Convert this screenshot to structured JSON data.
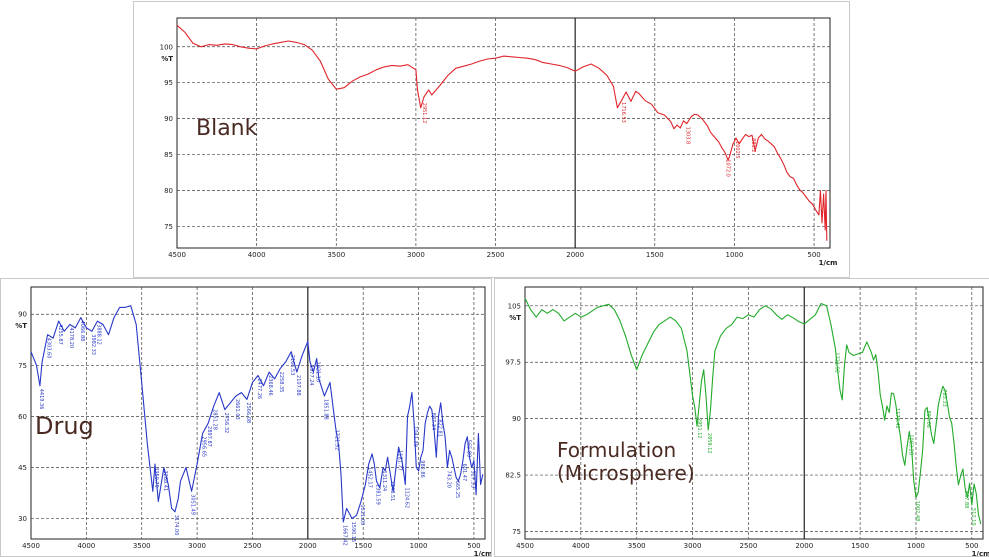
{
  "chart_data": [
    {
      "type": "line",
      "title": "",
      "panel_label": "Blank",
      "ylabel": "%T",
      "xlabel": "1/cm",
      "x_reversed": true,
      "xlim": [
        4500,
        400
      ],
      "ylim": [
        72,
        104
      ],
      "xticks": [
        4500,
        4000,
        3500,
        3000,
        2500,
        2000,
        1500,
        1000,
        500
      ],
      "yticks": [
        75,
        80,
        85,
        90,
        95,
        100
      ],
      "series": [
        {
          "color": "#e0242a",
          "x": [
            4500,
            4450,
            4400,
            4350,
            4300,
            4250,
            4200,
            4150,
            4100,
            4050,
            4000,
            3950,
            3900,
            3850,
            3800,
            3750,
            3700,
            3650,
            3600,
            3550,
            3500,
            3450,
            3400,
            3350,
            3300,
            3250,
            3200,
            3150,
            3100,
            3050,
            3000,
            2990,
            2970,
            2950,
            2920,
            2900,
            2850,
            2800,
            2750,
            2700,
            2650,
            2600,
            2550,
            2500,
            2450,
            2400,
            2350,
            2300,
            2250,
            2200,
            2150,
            2100,
            2050,
            2000,
            1950,
            1900,
            1850,
            1800,
            1760,
            1735,
            1710,
            1680,
            1650,
            1620,
            1600,
            1560,
            1520,
            1480,
            1440,
            1400,
            1380,
            1360,
            1340,
            1320,
            1300,
            1270,
            1250,
            1230,
            1200,
            1170,
            1150,
            1120,
            1100,
            1080,
            1060,
            1040,
            1030,
            1010,
            990,
            970,
            950,
            930,
            910,
            890,
            870,
            850,
            830,
            810,
            790,
            770,
            750,
            730,
            710,
            690,
            670,
            650,
            630,
            610,
            590,
            570,
            550,
            530,
            510,
            490,
            470,
            460,
            450,
            440,
            430,
            425,
            420
          ],
          "y": [
            103,
            102,
            100.5,
            100,
            100.3,
            100.2,
            100.4,
            100.3,
            100,
            99.8,
            99.7,
            100.1,
            100.4,
            100.6,
            100.8,
            100.6,
            100.3,
            99.5,
            98,
            95.5,
            94.1,
            94.3,
            95.2,
            95.8,
            96.2,
            96.8,
            97.2,
            97.4,
            97.3,
            97.5,
            96.8,
            94,
            91.5,
            93,
            94,
            93.3,
            94.6,
            96,
            97,
            97.3,
            97.6,
            98,
            98.3,
            98.4,
            98.7,
            98.6,
            98.5,
            98.4,
            98.2,
            97.8,
            97.6,
            97.4,
            97.1,
            96.6,
            97.2,
            97.6,
            97,
            96,
            94.5,
            91.5,
            92.5,
            93.7,
            92.4,
            93.8,
            93.5,
            92.5,
            92,
            90.8,
            90.5,
            89.6,
            88.6,
            89.1,
            88.7,
            89.7,
            89.3,
            90.3,
            90.6,
            90.5,
            89.9,
            89,
            88.1,
            87.3,
            86.8,
            86,
            85.3,
            84.2,
            84.8,
            86.4,
            87.3,
            86.5,
            87.2,
            87.8,
            87.5,
            87.7,
            85.5,
            87.3,
            87.8,
            87.2,
            86.9,
            86.5,
            86.1,
            85.2,
            84.5,
            83.6,
            82.5,
            81.9,
            81.7,
            80.8,
            80.1,
            79.7,
            79.1,
            78.5,
            78.1,
            77.3,
            76.6,
            80,
            75.5,
            79.5,
            74.5,
            80,
            73
          ]
        }
      ],
      "peak_labels": [
        {
          "x": 2955,
          "text": "2951.12"
        },
        {
          "x": 1705,
          "text": "1716.53"
        },
        {
          "x": 1300,
          "text": "1303.8"
        },
        {
          "x": 1050,
          "text": "1072.0"
        },
        {
          "x": 990,
          "text": "1002.5"
        },
        {
          "x": 890,
          "text": "881.2"
        }
      ]
    },
    {
      "type": "line",
      "title": "",
      "panel_label": "Drug",
      "ylabel": "%T",
      "xlabel": "1/cm",
      "x_reversed": true,
      "xlim": [
        4500,
        400
      ],
      "ylim": [
        24,
        98
      ],
      "xticks": [
        4500,
        4000,
        3500,
        3000,
        2500,
        2000,
        1500,
        1000,
        500
      ],
      "yticks": [
        30,
        45,
        60,
        75,
        90
      ],
      "series": [
        {
          "color": "#2838c8",
          "x": [
            4500,
            4450,
            4420,
            4400,
            4350,
            4300,
            4250,
            4200,
            4150,
            4100,
            4050,
            4000,
            3950,
            3900,
            3850,
            3800,
            3750,
            3700,
            3650,
            3600,
            3550,
            3500,
            3450,
            3400,
            3380,
            3350,
            3300,
            3260,
            3230,
            3200,
            3170,
            3150,
            3100,
            3050,
            3000,
            2950,
            2900,
            2850,
            2800,
            2750,
            2700,
            2650,
            2600,
            2550,
            2500,
            2450,
            2400,
            2350,
            2300,
            2250,
            2200,
            2150,
            2100,
            2050,
            2000,
            1980,
            1950,
            1920,
            1900,
            1850,
            1800,
            1750,
            1720,
            1700,
            1680,
            1650,
            1600,
            1560,
            1520,
            1480,
            1450,
            1420,
            1400,
            1380,
            1350,
            1320,
            1300,
            1280,
            1250,
            1230,
            1200,
            1180,
            1150,
            1120,
            1100,
            1080,
            1060,
            1040,
            1020,
            1000,
            980,
            960,
            940,
            920,
            900,
            880,
            860,
            840,
            820,
            800,
            780,
            760,
            740,
            720,
            700,
            680,
            660,
            640,
            620,
            600,
            580,
            560,
            540,
            520,
            500,
            480,
            460,
            440,
            420
          ],
          "y": [
            79,
            75,
            69,
            76,
            84,
            83,
            88,
            85,
            87,
            86,
            89,
            86,
            85,
            88,
            87,
            84,
            89,
            92,
            92,
            92.5,
            87,
            70,
            52,
            38,
            46,
            35,
            45,
            40,
            33,
            32,
            36,
            41,
            45,
            38,
            46,
            55,
            58,
            63,
            67,
            62,
            64,
            66,
            67,
            65,
            70,
            72,
            69,
            73,
            71,
            74,
            76,
            79,
            73,
            78,
            82,
            76,
            73,
            77,
            71,
            66,
            70,
            57,
            51,
            43,
            29,
            33,
            30,
            31,
            35,
            40,
            46,
            49,
            46,
            41,
            39,
            45,
            44,
            48,
            42,
            38,
            46,
            51,
            47,
            40,
            60,
            63,
            67,
            58,
            45,
            44,
            48,
            50,
            58,
            61,
            63,
            62,
            56,
            48,
            60,
            64,
            58,
            54,
            45,
            50,
            48,
            45,
            42,
            41,
            43,
            47,
            52,
            54,
            48,
            45,
            47,
            37,
            55,
            40,
            43
          ]
        }
      ],
      "peak_labels": [
        {
          "x": 4420,
          "text": "4419.36"
        },
        {
          "x": 4350,
          "text": "4303.60"
        },
        {
          "x": 4250,
          "text": "4255.87"
        },
        {
          "x": 4150,
          "text": "4178.20"
        },
        {
          "x": 4050,
          "text": "4066.88"
        },
        {
          "x": 3950,
          "text": "3982.33"
        },
        {
          "x": 3900,
          "text": "3888.12"
        },
        {
          "x": 3380,
          "text": "3350.79"
        },
        {
          "x": 3300,
          "text": "3288.41"
        },
        {
          "x": 3200,
          "text": "3174.00"
        },
        {
          "x": 3050,
          "text": "3051.49"
        },
        {
          "x": 2950,
          "text": "2956.65"
        },
        {
          "x": 2900,
          "text": "2897.87"
        },
        {
          "x": 2850,
          "text": "2851.28"
        },
        {
          "x": 2750,
          "text": "2756.32"
        },
        {
          "x": 2650,
          "text": "2661.03"
        },
        {
          "x": 2550,
          "text": "2566.08"
        },
        {
          "x": 2450,
          "text": "2477.26"
        },
        {
          "x": 2350,
          "text": "2368.46"
        },
        {
          "x": 2250,
          "text": "2258.35"
        },
        {
          "x": 2150,
          "text": "2166.53"
        },
        {
          "x": 2100,
          "text": "2107.88"
        },
        {
          "x": 1980,
          "text": "1977.24"
        },
        {
          "x": 1920,
          "text": "1921.10"
        },
        {
          "x": 1850,
          "text": "1851.88"
        },
        {
          "x": 1750,
          "text": "1721.92"
        },
        {
          "x": 1680,
          "text": "1667.42"
        },
        {
          "x": 1600,
          "text": "1590.15"
        },
        {
          "x": 1520,
          "text": "1521.03"
        },
        {
          "x": 1450,
          "text": "1452.17"
        },
        {
          "x": 1380,
          "text": "1381.59"
        },
        {
          "x": 1320,
          "text": "1311.24"
        },
        {
          "x": 1250,
          "text": "1248.51"
        },
        {
          "x": 1180,
          "text": "1181.77"
        },
        {
          "x": 1120,
          "text": "1124.62"
        },
        {
          "x": 1040,
          "text": "1041.39"
        },
        {
          "x": 980,
          "text": "982.86"
        },
        {
          "x": 880,
          "text": "887.34"
        },
        {
          "x": 820,
          "text": "822.81"
        },
        {
          "x": 740,
          "text": "743.20"
        },
        {
          "x": 660,
          "text": "665.25"
        },
        {
          "x": 600,
          "text": "601.47"
        },
        {
          "x": 560,
          "text": "565.89"
        },
        {
          "x": 520,
          "text": "527.33"
        }
      ]
    },
    {
      "type": "line",
      "title": "",
      "panel_label": "Formulation\n(Microsphere)",
      "ylabel": "%T",
      "xlabel": "1/cm",
      "x_reversed": true,
      "xlim": [
        4500,
        400
      ],
      "ylim": [
        74,
        107.5
      ],
      "xticks": [
        4500,
        4000,
        3500,
        3000,
        2500,
        2000,
        1500,
        1000,
        500
      ],
      "yticks": [
        75,
        82.5,
        90,
        97.5,
        105
      ],
      "series": [
        {
          "color": "#22aa2a",
          "x": [
            4500,
            4450,
            4400,
            4350,
            4300,
            4250,
            4200,
            4150,
            4100,
            4050,
            4000,
            3950,
            3900,
            3850,
            3800,
            3750,
            3700,
            3650,
            3600,
            3550,
            3500,
            3450,
            3400,
            3350,
            3300,
            3250,
            3200,
            3150,
            3100,
            3050,
            3000,
            2980,
            2960,
            2940,
            2920,
            2900,
            2880,
            2860,
            2840,
            2820,
            2800,
            2750,
            2700,
            2650,
            2600,
            2550,
            2500,
            2450,
            2400,
            2350,
            2300,
            2250,
            2200,
            2150,
            2100,
            2050,
            2000,
            1950,
            1900,
            1850,
            1800,
            1760,
            1740,
            1720,
            1700,
            1680,
            1660,
            1640,
            1620,
            1600,
            1560,
            1520,
            1480,
            1460,
            1440,
            1420,
            1400,
            1380,
            1360,
            1340,
            1320,
            1300,
            1280,
            1260,
            1240,
            1220,
            1200,
            1180,
            1160,
            1140,
            1120,
            1100,
            1080,
            1060,
            1040,
            1020,
            1000,
            980,
            960,
            940,
            920,
            900,
            880,
            860,
            840,
            820,
            800,
            780,
            760,
            740,
            720,
            700,
            680,
            660,
            640,
            620,
            600,
            580,
            560,
            540,
            520,
            500,
            480,
            460,
            440,
            420
          ],
          "y": [
            106,
            104.5,
            103.5,
            104.5,
            104,
            104.5,
            104,
            103,
            103.5,
            104,
            103.5,
            103.8,
            104.3,
            104.8,
            105,
            105.2,
            104.5,
            103,
            101,
            98.5,
            96.5,
            98.5,
            100,
            101.5,
            102.5,
            103,
            103.5,
            103,
            102,
            99,
            93,
            91.5,
            89,
            92,
            95,
            96.5,
            93,
            88.5,
            91,
            95.5,
            99,
            101,
            102,
            102.5,
            103.5,
            103.3,
            103.8,
            103.5,
            104.5,
            105,
            104.6,
            103.8,
            103.2,
            103.8,
            103.4,
            102.9,
            102.6,
            103.2,
            103.8,
            105.3,
            105,
            102.4,
            100.8,
            99.2,
            96.2,
            93.8,
            92.5,
            97.1,
            99.8,
            98.8,
            98.4,
            98.6,
            98.8,
            99.5,
            100.2,
            99.5,
            98.8,
            97.8,
            98.5,
            96.3,
            93.2,
            91.6,
            89.8,
            91.7,
            90.8,
            93.4,
            93.3,
            91.8,
            89.5,
            87.7,
            85.1,
            83.8,
            86.2,
            88.3,
            86.4,
            81.8,
            79.5,
            80.2,
            82.8,
            85.9,
            91.1,
            91.5,
            89.6,
            87.8,
            86.7,
            89.2,
            91.8,
            93.2,
            94.3,
            93.8,
            92.1,
            90.2,
            89.4,
            86.8,
            83.7,
            81.2,
            82.4,
            83.3,
            80.8,
            79.5,
            81.4,
            78.5,
            81.3,
            80,
            77.2,
            76
          ]
        }
      ],
      "peak_labels": [
        {
          "x": 2950,
          "text": "2951.12"
        },
        {
          "x": 2860,
          "text": "2859.12"
        },
        {
          "x": 1720,
          "text": "1721.92"
        },
        {
          "x": 1180,
          "text": "1178.42"
        },
        {
          "x": 1060,
          "text": "1083.28"
        },
        {
          "x": 1000,
          "text": "1002.48"
        },
        {
          "x": 900,
          "text": "897.06"
        },
        {
          "x": 760,
          "text": "763.33"
        },
        {
          "x": 560,
          "text": "567.88"
        },
        {
          "x": 500,
          "text": "512.10"
        }
      ]
    }
  ]
}
